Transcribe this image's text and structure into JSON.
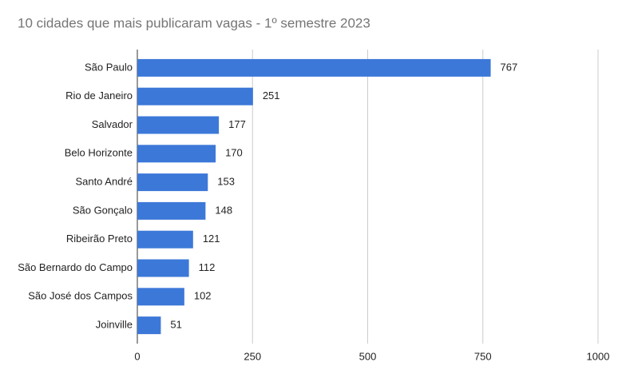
{
  "chart_data": {
    "type": "bar",
    "orientation": "horizontal",
    "title": "10 cidades que mais publicaram vagas - 1º semestre 2023",
    "categories": [
      "São Paulo",
      "Rio de Janeiro",
      "Salvador",
      "Belo Horizonte",
      "Santo André",
      "São Gonçalo",
      "Ribeirão Preto",
      "São Bernardo do Campo",
      "São José dos Campos",
      "Joinville"
    ],
    "values": [
      767,
      251,
      177,
      170,
      153,
      148,
      121,
      112,
      102,
      51
    ],
    "color": "#3c78d8",
    "xlim": [
      0,
      1000
    ],
    "xticks": [
      0,
      250,
      500,
      750,
      1000
    ],
    "grid": true
  }
}
